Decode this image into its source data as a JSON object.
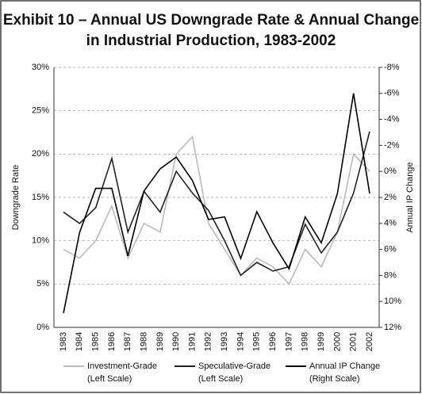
{
  "chart_data": {
    "type": "line",
    "title": [
      "Exhibit 10 – Annual US Downgrade Rate & Annual Change",
      "in Industrial Production, 1983-2002"
    ],
    "y_label": "Downgrade Rate",
    "y2_label": "Annual IP Change",
    "categories": [
      "1983",
      "1984",
      "1985",
      "1986",
      "1987",
      "1988",
      "1989",
      "1990",
      "1991",
      "1992",
      "1993",
      "1994",
      "1995",
      "1996",
      "1997",
      "1998",
      "1999",
      "2000",
      "2001",
      "2002"
    ],
    "series": [
      {
        "name": "Investment-Grade",
        "scale_note": "(Left Scale)",
        "color": "#bbbbbb",
        "values": [
          9,
          8,
          10,
          14,
          8,
          12,
          11,
          20,
          22,
          12,
          9,
          6,
          8,
          7,
          5,
          9,
          7,
          11,
          20,
          18
        ]
      },
      {
        "name": "Speculative-Grade",
        "scale_note": "(Left Scale)",
        "color": "#222222",
        "values": [
          13.3,
          12,
          13.8,
          19.5,
          11,
          15.7,
          13.3,
          18,
          15.5,
          13.5,
          10,
          6,
          7.5,
          6.5,
          7,
          11.9,
          8.6,
          11,
          15.5,
          22.6
        ]
      },
      {
        "name": "Annual IP Change",
        "scale_note": "(Right Scale)",
        "color": "#000000",
        "axis": "y2",
        "values": [
          10.9,
          4.7,
          1.3,
          1.3,
          6.5,
          1.5,
          -0.2,
          -1.1,
          0.7,
          3.7,
          3.5,
          6.7,
          3.1,
          5.5,
          7.5,
          3.5,
          5.5,
          1.7,
          -6,
          1.7
        ]
      }
    ],
    "ylim": [
      0,
      30
    ],
    "yticks": [
      {
        "value": 0,
        "label": "0%"
      },
      {
        "value": 5,
        "label": "5%"
      },
      {
        "value": 10,
        "label": "10%"
      },
      {
        "value": 15,
        "label": "15%"
      },
      {
        "value": 20,
        "label": "20%"
      },
      {
        "value": 25,
        "label": "25%"
      },
      {
        "value": 30,
        "label": "30%"
      }
    ],
    "y2lim": [
      12,
      -8
    ],
    "y2ticks": [
      {
        "value": 12,
        "label": "12%"
      },
      {
        "value": 10,
        "label": "10%"
      },
      {
        "value": 8,
        "label": "8%"
      },
      {
        "value": 6,
        "label": "6%"
      },
      {
        "value": 4,
        "label": "4%"
      },
      {
        "value": 2,
        "label": "2%"
      },
      {
        "value": 0,
        "label": "0%"
      },
      {
        "value": -2,
        "label": "-2%"
      },
      {
        "value": -4,
        "label": "-4%"
      },
      {
        "value": -6,
        "label": "-6%"
      },
      {
        "value": -8,
        "label": "-8%"
      }
    ],
    "grid": true
  }
}
